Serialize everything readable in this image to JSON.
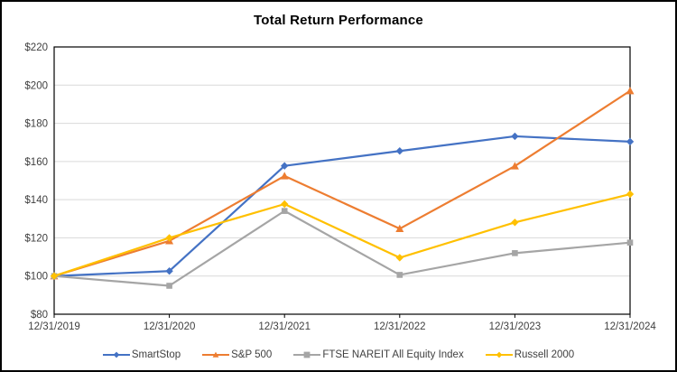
{
  "title": "Total Return Performance",
  "chart_data": {
    "type": "line",
    "x": [
      "12/31/2019",
      "12/31/2020",
      "12/31/2021",
      "12/31/2022",
      "12/31/2023",
      "12/31/2024"
    ],
    "series": [
      {
        "name": "SmartStop",
        "color": "#4472C4",
        "marker": "diamond",
        "values": [
          100,
          102.6,
          157.7,
          165.5,
          173.2,
          170.4
        ]
      },
      {
        "name": "S&P 500",
        "color": "#ED7D31",
        "marker": "triangle",
        "values": [
          100,
          118.4,
          152.4,
          124.8,
          157.6,
          197.0
        ]
      },
      {
        "name": "FTSE NAREIT All Equity Index",
        "color": "#A5A5A5",
        "marker": "square",
        "values": [
          100,
          94.9,
          134.1,
          100.6,
          112.0,
          117.5
        ]
      },
      {
        "name": "Russell 2000",
        "color": "#FFC000",
        "marker": "diamond",
        "values": [
          100,
          120.0,
          137.7,
          109.6,
          128.1,
          142.9
        ]
      }
    ],
    "ylim": [
      80,
      220
    ],
    "ytick_step": 20,
    "ytick_labels": [
      "$80",
      "$100",
      "$120",
      "$140",
      "$160",
      "$180",
      "$200",
      "$220"
    ],
    "grid": true,
    "legend_position": "bottom",
    "axis_label_color": "#404040",
    "gridline_color": "#D9D9D9",
    "plot_border_color": "#000000"
  }
}
